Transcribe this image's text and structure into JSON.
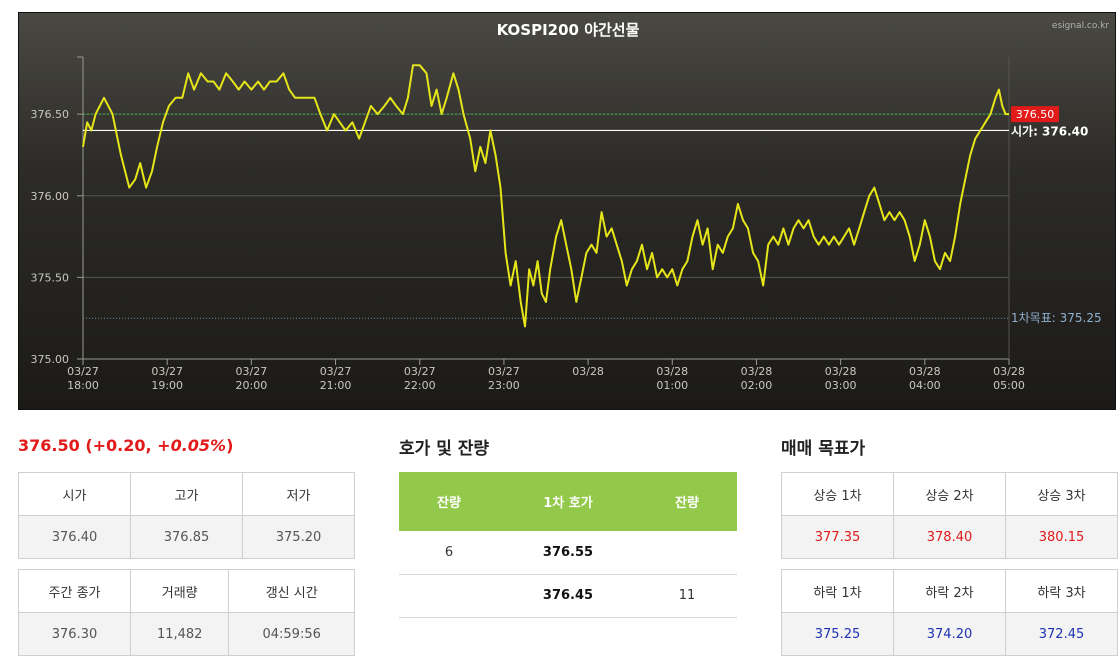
{
  "chart": {
    "title": "KOSPI200 야간선물",
    "watermark": "esignal.co.kr",
    "current_label": "376.50",
    "open_label": "시가: 376.40",
    "target_label": "1차목표: 375.25"
  },
  "chart_data": {
    "type": "line",
    "title": "KOSPI200 야간선물",
    "ylim": [
      375.0,
      376.85
    ],
    "yticks": [
      "375.00",
      "375.50",
      "376.00",
      "376.50"
    ],
    "xticks": [
      [
        "03/27",
        "18:00"
      ],
      [
        "03/27",
        "19:00"
      ],
      [
        "03/27",
        "20:00"
      ],
      [
        "03/27",
        "21:00"
      ],
      [
        "03/27",
        "22:00"
      ],
      [
        "03/27",
        "23:00"
      ],
      [
        "03/28",
        ""
      ],
      [
        "03/28",
        "01:00"
      ],
      [
        "03/28",
        "02:00"
      ],
      [
        "03/28",
        "03:00"
      ],
      [
        "03/28",
        "04:00"
      ],
      [
        "03/28",
        "05:00"
      ]
    ],
    "x_hours": [
      0,
      11
    ],
    "reference_lines": {
      "current": 376.5,
      "open": 376.4,
      "target1": 375.25
    },
    "series": [
      {
        "color": "#e5e51a",
        "points": [
          [
            0.0,
            376.3
          ],
          [
            0.05,
            376.45
          ],
          [
            0.1,
            376.4
          ],
          [
            0.15,
            376.5
          ],
          [
            0.2,
            376.55
          ],
          [
            0.25,
            376.6
          ],
          [
            0.3,
            376.55
          ],
          [
            0.35,
            376.5
          ],
          [
            0.45,
            376.25
          ],
          [
            0.5,
            376.15
          ],
          [
            0.55,
            376.05
          ],
          [
            0.62,
            376.1
          ],
          [
            0.68,
            376.2
          ],
          [
            0.75,
            376.05
          ],
          [
            0.82,
            376.15
          ],
          [
            0.88,
            376.3
          ],
          [
            0.95,
            376.45
          ],
          [
            1.02,
            376.55
          ],
          [
            1.1,
            376.6
          ],
          [
            1.18,
            376.6
          ],
          [
            1.25,
            376.75
          ],
          [
            1.32,
            376.65
          ],
          [
            1.4,
            376.75
          ],
          [
            1.48,
            376.7
          ],
          [
            1.55,
            376.7
          ],
          [
            1.62,
            376.65
          ],
          [
            1.7,
            376.75
          ],
          [
            1.78,
            376.7
          ],
          [
            1.85,
            376.65
          ],
          [
            1.92,
            376.7
          ],
          [
            2.0,
            376.65
          ],
          [
            2.08,
            376.7
          ],
          [
            2.15,
            376.65
          ],
          [
            2.22,
            376.7
          ],
          [
            2.3,
            376.7
          ],
          [
            2.38,
            376.75
          ],
          [
            2.45,
            376.65
          ],
          [
            2.52,
            376.6
          ],
          [
            2.6,
            376.6
          ],
          [
            2.68,
            376.6
          ],
          [
            2.75,
            376.6
          ],
          [
            2.82,
            376.5
          ],
          [
            2.9,
            376.4
          ],
          [
            2.98,
            376.5
          ],
          [
            3.05,
            376.45
          ],
          [
            3.12,
            376.4
          ],
          [
            3.2,
            376.45
          ],
          [
            3.28,
            376.35
          ],
          [
            3.35,
            376.45
          ],
          [
            3.42,
            376.55
          ],
          [
            3.5,
            376.5
          ],
          [
            3.58,
            376.55
          ],
          [
            3.65,
            376.6
          ],
          [
            3.72,
            376.55
          ],
          [
            3.8,
            376.5
          ],
          [
            3.86,
            376.6
          ],
          [
            3.92,
            376.8
          ],
          [
            4.0,
            376.8
          ],
          [
            4.08,
            376.75
          ],
          [
            4.14,
            376.55
          ],
          [
            4.2,
            376.65
          ],
          [
            4.26,
            376.5
          ],
          [
            4.32,
            376.6
          ],
          [
            4.4,
            376.75
          ],
          [
            4.46,
            376.65
          ],
          [
            4.52,
            376.5
          ],
          [
            4.6,
            376.35
          ],
          [
            4.66,
            376.15
          ],
          [
            4.72,
            376.3
          ],
          [
            4.78,
            376.2
          ],
          [
            4.84,
            376.4
          ],
          [
            4.9,
            376.25
          ],
          [
            4.96,
            376.05
          ],
          [
            5.02,
            375.65
          ],
          [
            5.08,
            375.45
          ],
          [
            5.14,
            375.6
          ],
          [
            5.2,
            375.35
          ],
          [
            5.25,
            375.2
          ],
          [
            5.3,
            375.55
          ],
          [
            5.35,
            375.45
          ],
          [
            5.4,
            375.6
          ],
          [
            5.45,
            375.4
          ],
          [
            5.5,
            375.35
          ],
          [
            5.55,
            375.55
          ],
          [
            5.62,
            375.75
          ],
          [
            5.68,
            375.85
          ],
          [
            5.74,
            375.7
          ],
          [
            5.8,
            375.55
          ],
          [
            5.86,
            375.35
          ],
          [
            5.92,
            375.5
          ],
          [
            5.98,
            375.65
          ],
          [
            6.04,
            375.7
          ],
          [
            6.1,
            375.65
          ],
          [
            6.16,
            375.9
          ],
          [
            6.22,
            375.75
          ],
          [
            6.28,
            375.8
          ],
          [
            6.34,
            375.7
          ],
          [
            6.4,
            375.6
          ],
          [
            6.46,
            375.45
          ],
          [
            6.52,
            375.55
          ],
          [
            6.58,
            375.6
          ],
          [
            6.64,
            375.7
          ],
          [
            6.7,
            375.55
          ],
          [
            6.76,
            375.65
          ],
          [
            6.82,
            375.5
          ],
          [
            6.88,
            375.55
          ],
          [
            6.94,
            375.5
          ],
          [
            7.0,
            375.55
          ],
          [
            7.06,
            375.45
          ],
          [
            7.12,
            375.55
          ],
          [
            7.18,
            375.6
          ],
          [
            7.24,
            375.75
          ],
          [
            7.3,
            375.85
          ],
          [
            7.36,
            375.7
          ],
          [
            7.42,
            375.8
          ],
          [
            7.48,
            375.55
          ],
          [
            7.54,
            375.7
          ],
          [
            7.6,
            375.65
          ],
          [
            7.66,
            375.75
          ],
          [
            7.72,
            375.8
          ],
          [
            7.78,
            375.95
          ],
          [
            7.84,
            375.85
          ],
          [
            7.9,
            375.8
          ],
          [
            7.96,
            375.65
          ],
          [
            8.02,
            375.6
          ],
          [
            8.08,
            375.45
          ],
          [
            8.14,
            375.7
          ],
          [
            8.2,
            375.75
          ],
          [
            8.26,
            375.7
          ],
          [
            8.32,
            375.8
          ],
          [
            8.38,
            375.7
          ],
          [
            8.44,
            375.8
          ],
          [
            8.5,
            375.85
          ],
          [
            8.56,
            375.8
          ],
          [
            8.62,
            375.85
          ],
          [
            8.68,
            375.75
          ],
          [
            8.74,
            375.7
          ],
          [
            8.8,
            375.75
          ],
          [
            8.86,
            375.7
          ],
          [
            8.92,
            375.75
          ],
          [
            8.98,
            375.7
          ],
          [
            9.04,
            375.75
          ],
          [
            9.1,
            375.8
          ],
          [
            9.16,
            375.7
          ],
          [
            9.22,
            375.8
          ],
          [
            9.28,
            375.9
          ],
          [
            9.34,
            376.0
          ],
          [
            9.4,
            376.05
          ],
          [
            9.46,
            375.95
          ],
          [
            9.52,
            375.85
          ],
          [
            9.58,
            375.9
          ],
          [
            9.64,
            375.85
          ],
          [
            9.7,
            375.9
          ],
          [
            9.76,
            375.85
          ],
          [
            9.82,
            375.75
          ],
          [
            9.88,
            375.6
          ],
          [
            9.94,
            375.7
          ],
          [
            10.0,
            375.85
          ],
          [
            10.06,
            375.75
          ],
          [
            10.12,
            375.6
          ],
          [
            10.18,
            375.55
          ],
          [
            10.24,
            375.65
          ],
          [
            10.3,
            375.6
          ],
          [
            10.36,
            375.75
          ],
          [
            10.42,
            375.95
          ],
          [
            10.48,
            376.1
          ],
          [
            10.54,
            376.25
          ],
          [
            10.6,
            376.35
          ],
          [
            10.66,
            376.4
          ],
          [
            10.72,
            376.45
          ],
          [
            10.78,
            376.5
          ],
          [
            10.84,
            376.6
          ],
          [
            10.88,
            376.65
          ],
          [
            10.92,
            376.55
          ],
          [
            10.96,
            376.5
          ],
          [
            11.0,
            376.5
          ]
        ]
      }
    ]
  },
  "summary": {
    "price": "376.50",
    "change": "(+0.20, ",
    "change_pct": "+0.05%",
    "close_paren": ")"
  },
  "ohlc_table": {
    "headers": [
      "시가",
      "고가",
      "저가"
    ],
    "values": [
      "376.40",
      "376.85",
      "375.20"
    ]
  },
  "day_table": {
    "headers": [
      "주간 종가",
      "거래량",
      "갱신 시간"
    ],
    "values": [
      "376.30",
      "11,482",
      "04:59:56"
    ]
  },
  "hoga": {
    "title": "호가 및 잔량",
    "headers": [
      "잔량",
      "1차 호가",
      "잔량"
    ],
    "rows": [
      [
        "6",
        "376.55",
        ""
      ],
      [
        "",
        "376.45",
        "11"
      ]
    ]
  },
  "targets": {
    "title": "매매 목표가",
    "up_headers": [
      "상승 1차",
      "상승 2차",
      "상승 3차"
    ],
    "up_values": [
      "377.35",
      "378.40",
      "380.15"
    ],
    "down_headers": [
      "하락 1차",
      "하락 2차",
      "하락 3차"
    ],
    "down_values": [
      "375.25",
      "374.20",
      "372.45"
    ],
    "up_color": "#e11a1a",
    "down_color": "#2231b5"
  }
}
